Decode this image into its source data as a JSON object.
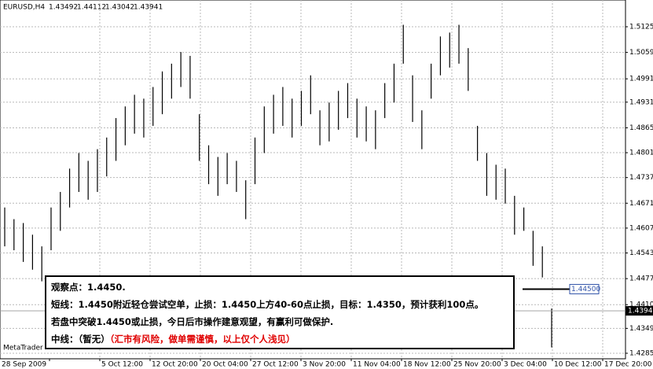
{
  "chart_data": {
    "type": "ohlc",
    "symbol": "EURUSD,H4",
    "header_values": [
      1.43492,
      1.44112,
      1.43042,
      1.43941
    ],
    "ylim": [
      1.42708,
      1.51938
    ],
    "yticks": [
      {
        "value": 1.5125,
        "label": "1.51250"
      },
      {
        "value": 1.5059,
        "label": "1.50590"
      },
      {
        "value": 1.4991,
        "label": "1.49910"
      },
      {
        "value": 1.4931,
        "label": "1.49310"
      },
      {
        "value": 1.4865,
        "label": "1.48650"
      },
      {
        "value": 1.4801,
        "label": "1.48010"
      },
      {
        "value": 1.4737,
        "label": "1.47370"
      },
      {
        "value": 1.4671,
        "label": "1.46710"
      },
      {
        "value": 1.4607,
        "label": "1.46070"
      },
      {
        "value": 1.4543,
        "label": "1.45430"
      },
      {
        "value": 1.4477,
        "label": "1.44770"
      },
      {
        "value": 1.441,
        "label": "1.44100"
      },
      {
        "value": 1.4349,
        "label": "1.43490"
      },
      {
        "value": 1.4285,
        "label": "1.42850"
      }
    ],
    "time_labels": [
      "28 Sep 2009",
      "5 Oct 12:00",
      "12 Oct 20:00",
      "20 Oct 04:00",
      "27 Oct 12:00",
      "3 Nov 20:00",
      "11 Nov 04:00",
      "18 Nov 12:00",
      "25 Nov 20:00",
      "3 Dec 04:00",
      "10 Dec 12:00",
      "17 Dec 20:00"
    ],
    "grid": true,
    "color": "#000000",
    "high": [
      1.466,
      1.463,
      1.462,
      1.459,
      1.456,
      1.466,
      1.47,
      1.476,
      1.48,
      1.478,
      1.481,
      1.484,
      1.489,
      1.492,
      1.495,
      1.494,
      1.497,
      1.501,
      1.503,
      1.506,
      1.505,
      1.49,
      1.482,
      1.479,
      1.48,
      1.478,
      1.473,
      1.484,
      1.492,
      1.495,
      1.497,
      1.494,
      1.496,
      1.5,
      1.491,
      1.493,
      1.496,
      1.498,
      1.494,
      1.492,
      1.491,
      1.498,
      1.503,
      1.513,
      1.5,
      1.491,
      1.503,
      1.51,
      1.511,
      1.513,
      1.507,
      1.487,
      1.48,
      1.477,
      1.476,
      1.469,
      1.466,
      1.46,
      1.456,
      1.44
    ],
    "low": [
      1.456,
      1.455,
      1.452,
      1.45,
      1.447,
      1.455,
      1.46,
      1.466,
      1.47,
      1.468,
      1.47,
      1.474,
      1.478,
      1.482,
      1.485,
      1.484,
      1.487,
      1.49,
      1.494,
      1.497,
      1.494,
      1.478,
      1.472,
      1.469,
      1.472,
      1.47,
      1.463,
      1.472,
      1.48,
      1.485,
      1.487,
      1.484,
      1.487,
      1.49,
      1.482,
      1.483,
      1.486,
      1.489,
      1.484,
      1.483,
      1.481,
      1.489,
      1.493,
      1.503,
      1.488,
      1.481,
      1.494,
      1.5,
      1.502,
      1.503,
      1.496,
      1.478,
      1.469,
      1.468,
      1.467,
      1.459,
      1.46,
      1.451,
      1.448,
      1.43
    ],
    "current_price": 1.43941,
    "level": {
      "value": 1.445,
      "label": "1.44500"
    },
    "platform": "MetaTrader"
  },
  "note": {
    "line1": "观察点：1.4450.",
    "line2": "短线：1.4450附近轻仓尝试空单，止损：1.4450上方40-60点止损，目标：1.4350，预计获利100点。",
    "line3": "若盘中突破1.4450或止损，今日后市操作建意观望，有赢利可做保护.",
    "line4a": "中线：（暂无）",
    "line4b": "（汇市有风险，做单需谨慎，以上仅个人浅见）"
  }
}
